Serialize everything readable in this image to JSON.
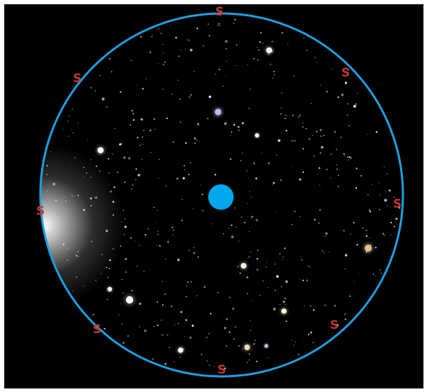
{
  "sky": {
    "background_color": "#000000",
    "horizon_ring_color": "#1ea0e0",
    "zenith_marker_color": "#00a8ee",
    "cardinal_color": "#c0392b",
    "glow_color": "#ffffff"
  },
  "cardinal_labels": [
    {
      "id": "top",
      "text": "S"
    },
    {
      "id": "top-right",
      "text": "S"
    },
    {
      "id": "right",
      "text": "S"
    },
    {
      "id": "bottom-right",
      "text": "S"
    },
    {
      "id": "bottom",
      "text": "S"
    },
    {
      "id": "bottom-left",
      "text": "S"
    },
    {
      "id": "left",
      "text": "S"
    },
    {
      "id": "top-left",
      "text": "S"
    }
  ],
  "bright_stars": [
    {
      "id": "star-1",
      "color": "#f4f4f4"
    },
    {
      "id": "star-2",
      "color": "#b8b8ff"
    },
    {
      "id": "star-3",
      "color": "#ffffff"
    },
    {
      "id": "star-4",
      "color": "#ffffff"
    },
    {
      "id": "star-5",
      "color": "#f0c080"
    },
    {
      "id": "star-6",
      "color": "#fff8e0"
    },
    {
      "id": "star-7",
      "color": "#ffffff"
    },
    {
      "id": "star-8",
      "color": "#ffffff"
    },
    {
      "id": "star-9",
      "color": "#fffad8"
    },
    {
      "id": "star-10",
      "color": "#f0d8b0"
    },
    {
      "id": "star-11",
      "color": "#ffffff"
    },
    {
      "id": "star-12",
      "color": "#c0c8ff"
    }
  ]
}
